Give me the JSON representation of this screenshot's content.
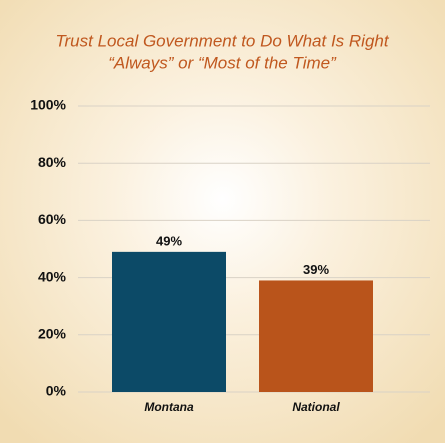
{
  "chart_data": {
    "type": "bar",
    "title": [
      "Trust Local Government to Do What Is Right",
      "“Always” or “Most of the Time”"
    ],
    "categories": [
      "Montana",
      "National"
    ],
    "values": [
      49,
      39
    ],
    "value_labels": [
      "49%",
      "39%"
    ],
    "colors": [
      "#0c4a67",
      "#b9541b"
    ],
    "ylim": [
      0,
      100
    ],
    "yticks": [
      {
        "value": 0,
        "label": "0%"
      },
      {
        "value": 20,
        "label": "20%"
      },
      {
        "value": 40,
        "label": "40%"
      },
      {
        "value": 60,
        "label": "60%"
      },
      {
        "value": 80,
        "label": "80%"
      },
      {
        "value": 100,
        "label": "100%"
      }
    ],
    "grid": true
  }
}
